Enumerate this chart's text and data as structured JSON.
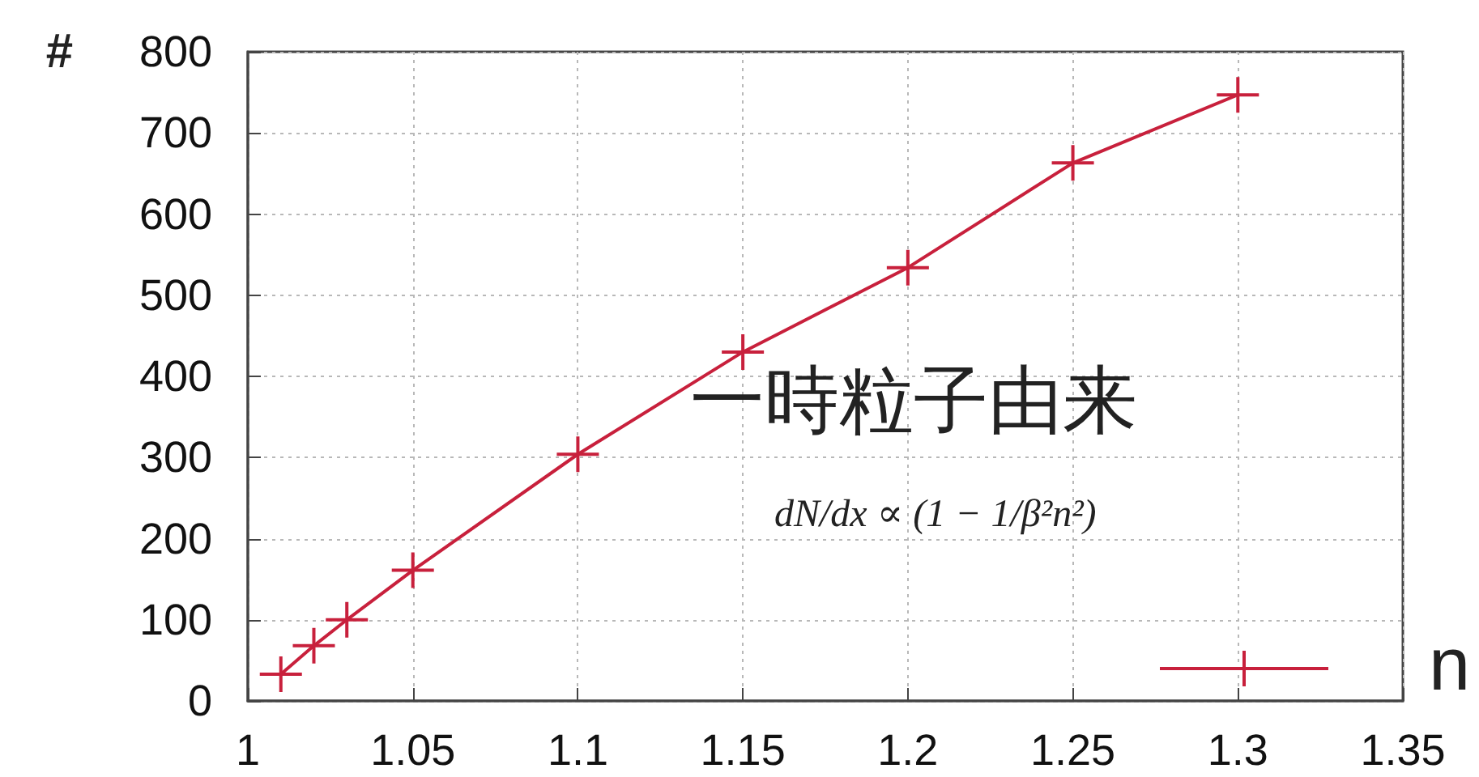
{
  "chart_data": {
    "type": "line",
    "xlabel": "n",
    "ylabel": "#",
    "x": [
      1.01,
      1.02,
      1.03,
      1.05,
      1.1,
      1.15,
      1.2,
      1.25,
      1.3
    ],
    "series": [
      {
        "color": "#c8203c",
        "values": [
          33,
          68,
          100,
          161,
          304,
          430,
          534,
          663,
          747
        ]
      }
    ],
    "xlim": [
      1,
      1.35
    ],
    "xticks": [
      1,
      1.05,
      1.1,
      1.15,
      1.2,
      1.25,
      1.3,
      1.35
    ],
    "ylim": [
      0,
      800
    ],
    "yticks": [
      0,
      100,
      200,
      300,
      400,
      500,
      600,
      700,
      800
    ],
    "grid": true,
    "marker": "cross",
    "line_style": "solid",
    "annotations": [
      "一時粒子由来",
      "dN/dx ∝ (1 − 1/β²n²)"
    ]
  }
}
